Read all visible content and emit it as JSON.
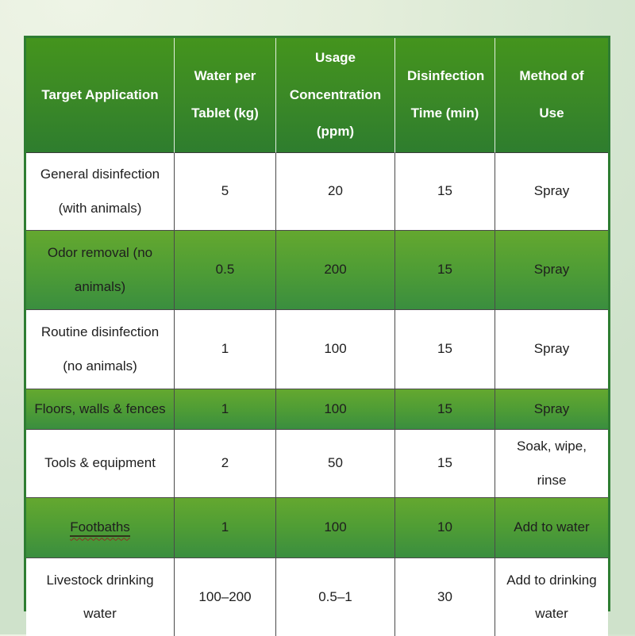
{
  "chart_data": {
    "type": "table",
    "title": "",
    "columns": [
      "Target Application",
      "Water per Tablet (kg)",
      "Usage Concentration (ppm)",
      "Disinfection Time (min)",
      "Method of Use"
    ],
    "rows": [
      [
        "General disinfection (with animals)",
        "5",
        "20",
        "15",
        "Spray"
      ],
      [
        "Odor removal (no animals)",
        "0.5",
        "200",
        "15",
        "Spray"
      ],
      [
        "Routine disinfection (no animals)",
        "1",
        "100",
        "15",
        "Spray"
      ],
      [
        "Floors, walls & fences",
        "1",
        "100",
        "15",
        "Spray"
      ],
      [
        "Tools & equipment",
        "2",
        "50",
        "15",
        "Soak, wipe, rinse"
      ],
      [
        "Footbaths",
        "1",
        "100",
        "10",
        "Add to water"
      ],
      [
        "Livestock drinking water",
        "100–200",
        "0.5–1",
        "30",
        "Add to drinking water"
      ]
    ],
    "highlighted_row_indices": [
      1,
      3,
      5
    ],
    "underlined_cell_text": "Footbaths",
    "layout_hints": {
      "header_style": "green gradient, white bold text, white column separators",
      "row_striping": "white / green gradient alternating irregular",
      "grid": "thin dark lines between body cells"
    }
  },
  "colors": {
    "header_green_top": "#44941d",
    "header_green_bottom": "#2e7d2e",
    "row_green_top": "#64a82f",
    "row_green_bottom": "#3a8e3f",
    "table_outer_border": "#2e7d32",
    "grid_line": "#4a4a4a",
    "header_text": "#ffffff",
    "body_text": "#1e1e1e",
    "page_background_light": "#eef4e6",
    "page_background_dark": "#cfe2cb",
    "squiggle_underline": "#8b2f20"
  }
}
